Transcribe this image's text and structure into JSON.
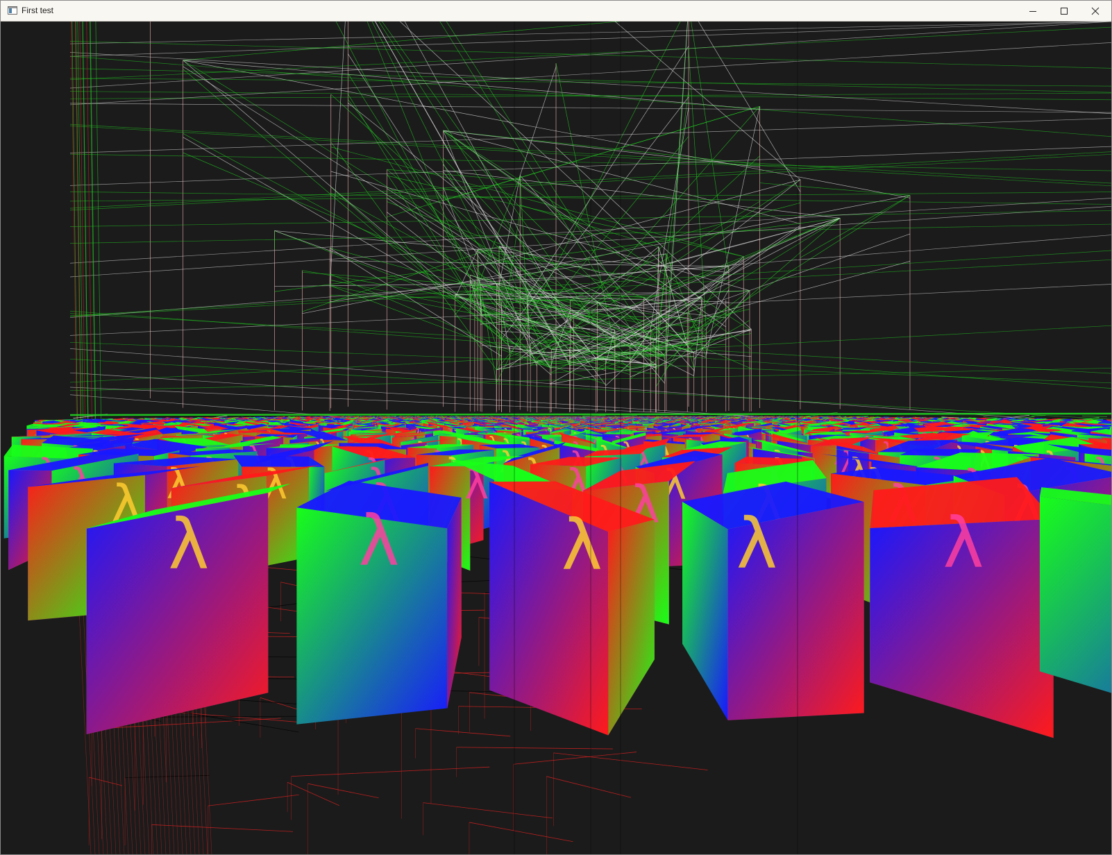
{
  "window": {
    "title": "First test",
    "controls": {
      "minimize": "minimize-icon",
      "maximize": "maximize-icon",
      "close": "close-icon"
    }
  },
  "scene": {
    "background_color": "#1b1b1b",
    "wire_colors": {
      "green": "#22d422",
      "white": "#e8e8e8",
      "red": "#e02020",
      "pink": "#f0b0b0"
    },
    "cube_colors": [
      "#ff1a1a",
      "#18ff18",
      "#1818ff",
      "#ff40a0",
      "#ffcc30"
    ]
  }
}
